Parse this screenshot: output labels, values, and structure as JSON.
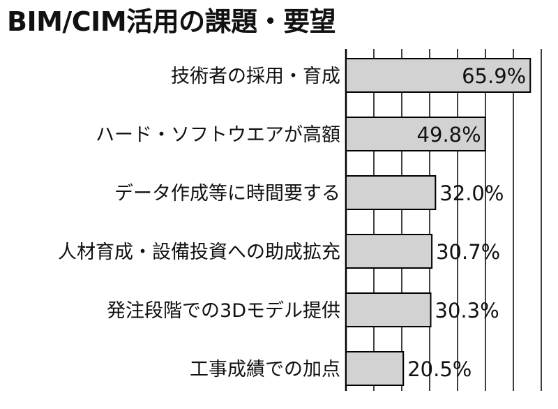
{
  "chart_data": {
    "type": "bar",
    "orientation": "horizontal",
    "title": "BIM/CIM活用の課題・要望",
    "categories": [
      "技術者の採用・育成",
      "ハード・ソフトウエアが高額",
      "データ作成等に時間要する",
      "人材育成・設備投資への助成拡充",
      "発注段階での3Dモデル提供",
      "工事成績での加点"
    ],
    "values": [
      65.9,
      49.8,
      32.0,
      30.7,
      30.3,
      20.5
    ],
    "data_labels": [
      "65.9%",
      "49.8%",
      "32.0%",
      "30.7%",
      "30.3%",
      "20.5%"
    ],
    "xlim": [
      0,
      70
    ],
    "grid": true,
    "bar_color": "#d2d2d2"
  }
}
